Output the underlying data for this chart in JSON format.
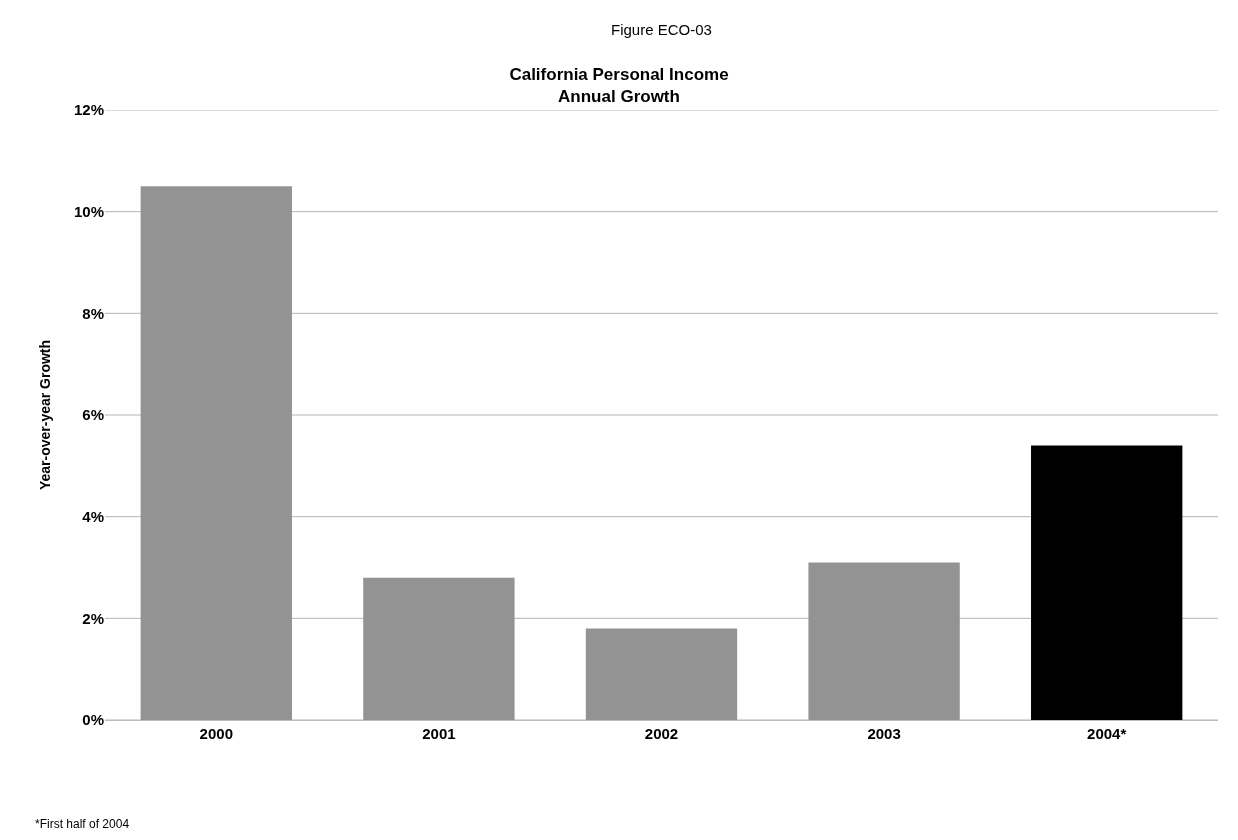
{
  "chart_data": {
    "type": "bar",
    "subtitle": "Figure ECO-03",
    "title": "California Personal Income\nAnnual Growth",
    "ylabel": "Year-over-year Growth",
    "categories": [
      "2000",
      "2001",
      "2002",
      "2003",
      "2004*"
    ],
    "values": [
      10.5,
      2.8,
      1.8,
      3.1,
      5.4
    ],
    "colors": [
      "#939393",
      "#939393",
      "#939393",
      "#939393",
      "#000000"
    ],
    "ylim": [
      0,
      12
    ],
    "yticks": [
      {
        "value": 0,
        "label": "0%"
      },
      {
        "value": 2,
        "label": "2%"
      },
      {
        "value": 4,
        "label": "4%"
      },
      {
        "value": 6,
        "label": "6%"
      },
      {
        "value": 8,
        "label": "8%"
      },
      {
        "value": 10,
        "label": "10%"
      },
      {
        "value": 12,
        "label": "12%"
      }
    ],
    "grid": "y",
    "annotations": [
      "*First half of 2004"
    ]
  }
}
